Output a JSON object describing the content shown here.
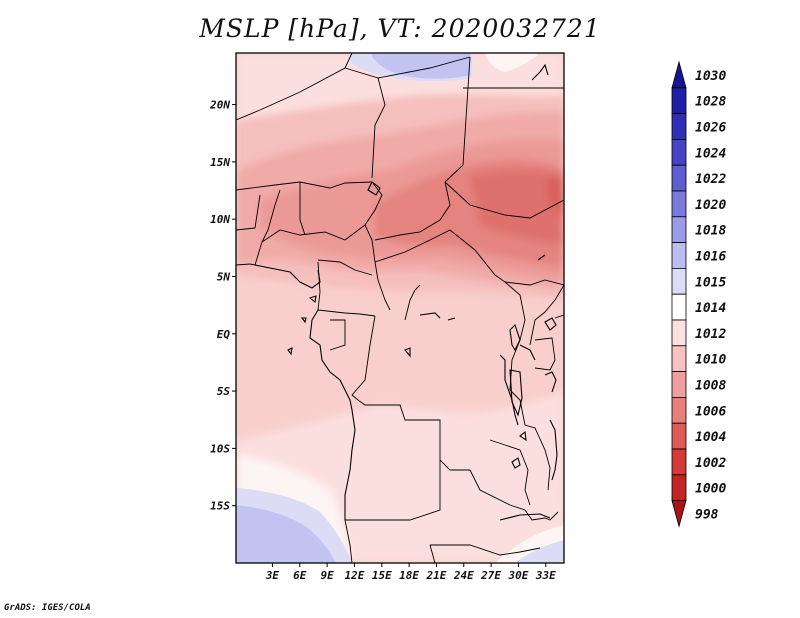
{
  "title": "MSLP [hPa], VT: 2020032721",
  "credit": "GrADS: IGES/COLA",
  "map": {
    "lon_range": [
      -1,
      35
    ],
    "lat_range": [
      -20,
      24.5
    ],
    "lat_ticks": [
      {
        "lat": 20,
        "label": "20N"
      },
      {
        "lat": 15,
        "label": "15N"
      },
      {
        "lat": 10,
        "label": "10N"
      },
      {
        "lat": 5,
        "label": "5N"
      },
      {
        "lat": 0,
        "label": "EQ"
      },
      {
        "lat": -5,
        "label": "5S"
      },
      {
        "lat": -10,
        "label": "10S"
      },
      {
        "lat": -15,
        "label": "15S"
      }
    ],
    "lon_ticks": [
      {
        "lon": 3,
        "label": "3E"
      },
      {
        "lon": 6,
        "label": "6E"
      },
      {
        "lon": 9,
        "label": "9E"
      },
      {
        "lon": 12,
        "label": "12E"
      },
      {
        "lon": 15,
        "label": "15E"
      },
      {
        "lon": 18,
        "label": "18E"
      },
      {
        "lon": 21,
        "label": "21E"
      },
      {
        "lon": 24,
        "label": "24E"
      },
      {
        "lon": 27,
        "label": "27E"
      },
      {
        "lon": 30,
        "label": "30E"
      },
      {
        "lon": 33,
        "label": "33E"
      }
    ]
  },
  "colorbar": {
    "levels": [
      {
        "label": "1030",
        "color": "#161693"
      },
      {
        "label": "1028",
        "color": "#1f1fa6"
      },
      {
        "label": "1026",
        "color": "#2f2fb6"
      },
      {
        "label": "1024",
        "color": "#4444c4"
      },
      {
        "label": "1022",
        "color": "#5e5ed0"
      },
      {
        "label": "1020",
        "color": "#7b7bdc"
      },
      {
        "label": "1018",
        "color": "#9b9be7"
      },
      {
        "label": "1016",
        "color": "#bdbdf0"
      },
      {
        "label": "1015",
        "color": "#dcdcf7"
      },
      {
        "label": "1014",
        "color": "#ffffff"
      },
      {
        "label": "1012",
        "color": "#fbe1e1"
      },
      {
        "label": "1010",
        "color": "#f7c3c2"
      },
      {
        "label": "1008",
        "color": "#ef9f9d"
      },
      {
        "label": "1006",
        "color": "#e77f7c"
      },
      {
        "label": "1004",
        "color": "#df5b57"
      },
      {
        "label": "1002",
        "color": "#d43a36"
      },
      {
        "label": "1000",
        "color": "#c32522"
      },
      {
        "label": "998",
        "color": "#a91613"
      }
    ]
  },
  "pressure_colors": {
    "p1016": "#c3c3f2",
    "p1015": "#dcdcf7",
    "p1014": "#fdf4f4",
    "p1012": "#fbdfde",
    "p1011": "#f8cfcd",
    "p1010": "#f5bfbd",
    "p1009": "#f0aaa7",
    "p1008": "#eb9996",
    "p1007": "#e4837f",
    "p1006": "#de716d",
    "p1005": "#d75e59"
  }
}
